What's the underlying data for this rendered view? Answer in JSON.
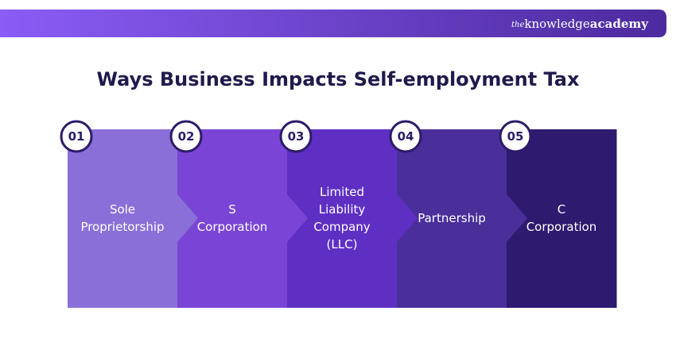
{
  "header": {
    "logo": {
      "prefix": "the",
      "name": "knowledge",
      "suffix": "academy"
    }
  },
  "title": "Ways Business Impacts Self-employment Tax",
  "steps": [
    {
      "number": "01",
      "label": [
        "Sole",
        "Proprietorship"
      ]
    },
    {
      "number": "02",
      "label": [
        "S",
        "Corporation"
      ]
    },
    {
      "number": "03",
      "label": [
        "Limited",
        "Liability",
        "Company",
        "(LLC)"
      ]
    },
    {
      "number": "04",
      "label": [
        "Partnership"
      ]
    },
    {
      "number": "05",
      "label": [
        "C",
        "Corporation"
      ]
    }
  ]
}
